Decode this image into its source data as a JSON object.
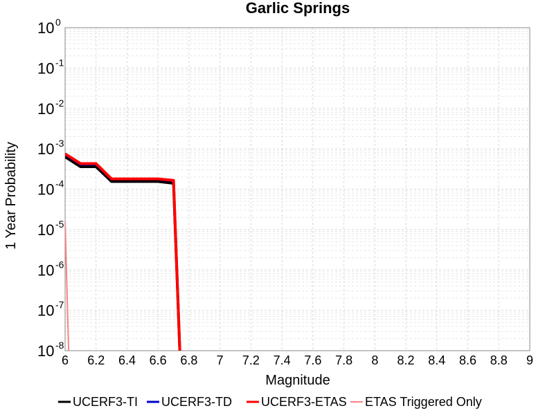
{
  "chart_data": {
    "type": "line",
    "title": "Garlic Springs",
    "xlabel": "Magnitude",
    "ylabel": "1 Year Probability",
    "xlim": [
      6,
      9
    ],
    "ylim": [
      1e-08,
      1
    ],
    "yscale": "log",
    "grid": true,
    "legend_position": "bottom",
    "x_ticks": [
      "6",
      "6.2",
      "6.4",
      "6.6",
      "6.8",
      "7",
      "7.2",
      "7.4",
      "7.6",
      "7.8",
      "8",
      "8.2",
      "8.4",
      "8.6",
      "8.8",
      "9"
    ],
    "y_ticks": [
      {
        "base": "10",
        "exp": "0"
      },
      {
        "base": "10",
        "exp": "-1"
      },
      {
        "base": "10",
        "exp": "-2"
      },
      {
        "base": "10",
        "exp": "-3"
      },
      {
        "base": "10",
        "exp": "-4"
      },
      {
        "base": "10",
        "exp": "-5"
      },
      {
        "base": "10",
        "exp": "-6"
      },
      {
        "base": "10",
        "exp": "-7"
      },
      {
        "base": "10",
        "exp": "-8"
      }
    ],
    "series": [
      {
        "name": "UCERF3-TI",
        "color": "#000000",
        "width": 4,
        "x": [
          6.0,
          6.1,
          6.2,
          6.3,
          6.4,
          6.5,
          6.6,
          6.7,
          6.75
        ],
        "y": [
          0.00063,
          0.00036,
          0.00036,
          0.000155,
          0.000155,
          0.000155,
          0.000155,
          0.00014,
          1e-09
        ]
      },
      {
        "name": "UCERF3-TD",
        "color": "#0000cc",
        "width": 3,
        "x": [
          6.0,
          6.1,
          6.2,
          6.3,
          6.4,
          6.5,
          6.6,
          6.7,
          6.75
        ],
        "y": [
          0.00072,
          0.00041,
          0.00041,
          0.000175,
          0.000175,
          0.000175,
          0.000175,
          0.00016,
          1e-09
        ]
      },
      {
        "name": "UCERF3-ETAS",
        "color": "#ff0000",
        "width": 4,
        "x": [
          6.0,
          6.1,
          6.2,
          6.3,
          6.4,
          6.5,
          6.6,
          6.7,
          6.75
        ],
        "y": [
          0.00075,
          0.00043,
          0.00043,
          0.00018,
          0.00018,
          0.00018,
          0.00018,
          0.000165,
          1e-09
        ]
      },
      {
        "name": "ETAS Triggered Only",
        "color": "#ff8080",
        "width": 2,
        "x": [
          6.0,
          6.03
        ],
        "y": [
          1.6e-05,
          1e-09
        ]
      }
    ]
  }
}
